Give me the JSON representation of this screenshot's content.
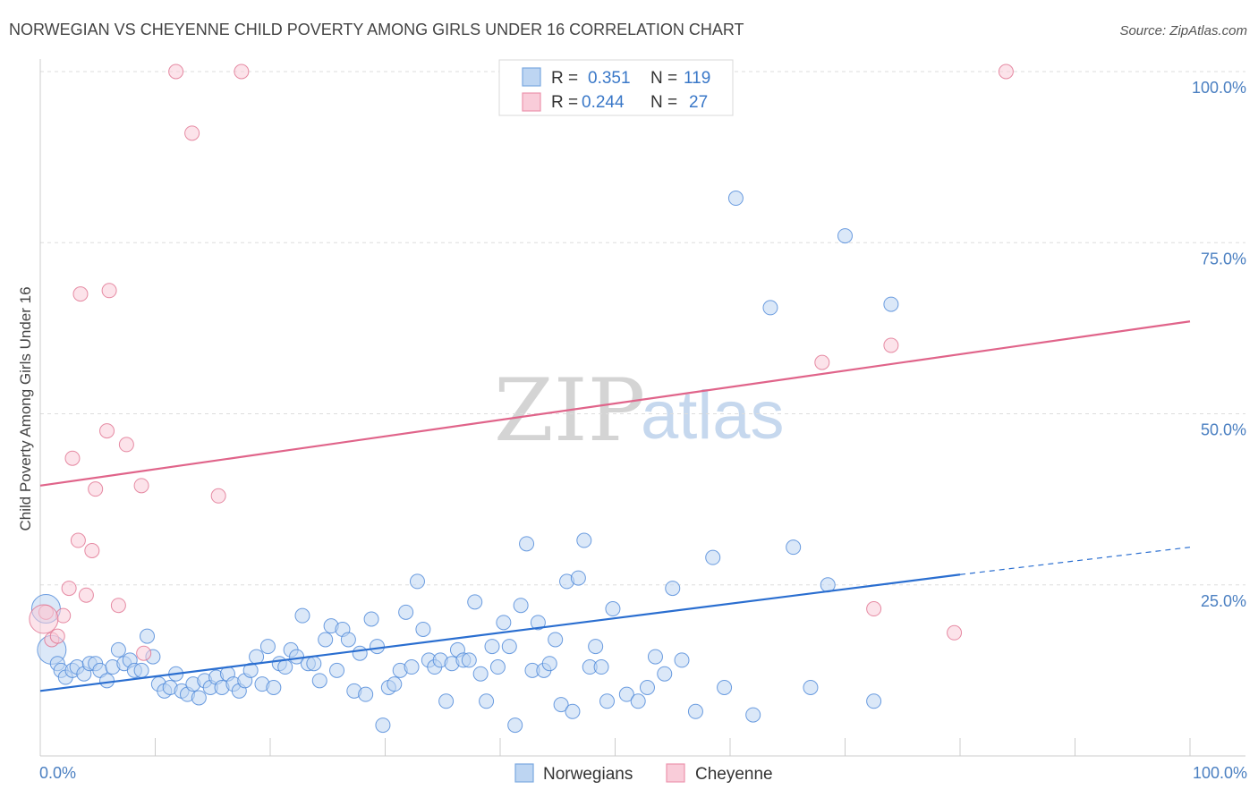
{
  "title": "NORWEGIAN VS CHEYENNE CHILD POVERTY AMONG GIRLS UNDER 16 CORRELATION CHART",
  "source": "Source: ZipAtlas.com",
  "watermark": {
    "zip": "ZIP",
    "atlas": "atlas"
  },
  "legend": {
    "rows": [
      {
        "r_label": "R =",
        "r_value": "0.351",
        "n_label": "N =",
        "n_value": "119",
        "color": "#9fc3ec"
      },
      {
        "r_label": "R =",
        "r_value": "0.244",
        "n_label": "N =",
        "n_value": "27",
        "color": "#f6b9ca"
      }
    ]
  },
  "bottom_legend": [
    {
      "label": "Norwegians",
      "color": "#9fc3ec"
    },
    {
      "label": "Cheyenne",
      "color": "#f6b9ca"
    }
  ],
  "chart_data": {
    "type": "scatter",
    "ylabel": "Child Poverty Among Girls Under 16",
    "xlabel": "",
    "xlim": [
      0,
      100
    ],
    "ylim": [
      0,
      100
    ],
    "x_tick_labels": {
      "left": "0.0%",
      "right": "100.0%"
    },
    "y_ticks": [
      {
        "value": 100,
        "label": "100.0%"
      },
      {
        "value": 75,
        "label": "75.0%"
      },
      {
        "value": 50,
        "label": "50.0%"
      },
      {
        "value": 25,
        "label": "25.0%"
      }
    ],
    "grid": true,
    "legend_position": "top-center",
    "series": [
      {
        "name": "Norwegians",
        "color": "#4a86d8",
        "fill": "#bdd5f2",
        "trend": {
          "x": [
            0,
            80
          ],
          "y": [
            9.5,
            26.5
          ],
          "dashed_to": [
            100,
            30.5
          ],
          "color": "#2a6ed0"
        },
        "points": [
          [
            0.5,
            21.5
          ],
          [
            1.0,
            15.5
          ],
          [
            1.5,
            13.5
          ],
          [
            1.8,
            12.5
          ],
          [
            2.2,
            11.5
          ],
          [
            2.8,
            12.5
          ],
          [
            3.2,
            13.0
          ],
          [
            3.8,
            12.0
          ],
          [
            4.3,
            13.5
          ],
          [
            4.8,
            13.5
          ],
          [
            5.2,
            12.5
          ],
          [
            5.8,
            11.0
          ],
          [
            6.3,
            13.0
          ],
          [
            6.8,
            15.5
          ],
          [
            7.3,
            13.5
          ],
          [
            7.8,
            14.0
          ],
          [
            8.2,
            12.5
          ],
          [
            8.8,
            12.5
          ],
          [
            9.3,
            17.5
          ],
          [
            9.8,
            14.5
          ],
          [
            10.3,
            10.5
          ],
          [
            10.8,
            9.5
          ],
          [
            11.3,
            10.0
          ],
          [
            11.8,
            12.0
          ],
          [
            12.3,
            9.5
          ],
          [
            12.8,
            9.0
          ],
          [
            13.3,
            10.5
          ],
          [
            13.8,
            8.5
          ],
          [
            14.3,
            11.0
          ],
          [
            14.8,
            10.0
          ],
          [
            15.3,
            11.5
          ],
          [
            15.8,
            10.0
          ],
          [
            16.3,
            12.0
          ],
          [
            16.8,
            10.5
          ],
          [
            17.3,
            9.5
          ],
          [
            17.8,
            11.0
          ],
          [
            18.3,
            12.5
          ],
          [
            18.8,
            14.5
          ],
          [
            19.3,
            10.5
          ],
          [
            19.8,
            16.0
          ],
          [
            20.3,
            10.0
          ],
          [
            20.8,
            13.5
          ],
          [
            21.3,
            13.0
          ],
          [
            21.8,
            15.5
          ],
          [
            22.3,
            14.5
          ],
          [
            22.8,
            20.5
          ],
          [
            23.3,
            13.5
          ],
          [
            23.8,
            13.5
          ],
          [
            24.3,
            11.0
          ],
          [
            24.8,
            17.0
          ],
          [
            25.3,
            19.0
          ],
          [
            25.8,
            12.5
          ],
          [
            26.3,
            18.5
          ],
          [
            26.8,
            17.0
          ],
          [
            27.3,
            9.5
          ],
          [
            27.8,
            15.0
          ],
          [
            28.3,
            9.0
          ],
          [
            28.8,
            20.0
          ],
          [
            29.3,
            16.0
          ],
          [
            29.8,
            4.5
          ],
          [
            30.3,
            10.0
          ],
          [
            30.8,
            10.5
          ],
          [
            31.3,
            12.5
          ],
          [
            31.8,
            21.0
          ],
          [
            32.3,
            13.0
          ],
          [
            32.8,
            25.5
          ],
          [
            33.3,
            18.5
          ],
          [
            33.8,
            14.0
          ],
          [
            34.3,
            13.0
          ],
          [
            34.8,
            14.0
          ],
          [
            35.3,
            8.0
          ],
          [
            35.8,
            13.5
          ],
          [
            36.3,
            15.5
          ],
          [
            36.8,
            14.0
          ],
          [
            37.3,
            14.0
          ],
          [
            37.8,
            22.5
          ],
          [
            38.3,
            12.0
          ],
          [
            38.8,
            8.0
          ],
          [
            39.3,
            16.0
          ],
          [
            39.8,
            13.0
          ],
          [
            40.3,
            19.5
          ],
          [
            40.8,
            16.0
          ],
          [
            41.3,
            4.5
          ],
          [
            41.8,
            22.0
          ],
          [
            42.3,
            31.0
          ],
          [
            42.8,
            12.5
          ],
          [
            43.3,
            19.5
          ],
          [
            43.8,
            12.5
          ],
          [
            44.3,
            13.5
          ],
          [
            44.8,
            17.0
          ],
          [
            45.3,
            7.5
          ],
          [
            45.8,
            25.5
          ],
          [
            46.3,
            6.5
          ],
          [
            46.8,
            26.0
          ],
          [
            47.3,
            31.5
          ],
          [
            47.8,
            13.0
          ],
          [
            48.3,
            16.0
          ],
          [
            48.8,
            13.0
          ],
          [
            49.3,
            8.0
          ],
          [
            49.8,
            21.5
          ],
          [
            51.0,
            9.0
          ],
          [
            52.0,
            8.0
          ],
          [
            52.8,
            10.0
          ],
          [
            53.5,
            14.5
          ],
          [
            54.3,
            12.0
          ],
          [
            55.0,
            24.5
          ],
          [
            55.8,
            14.0
          ],
          [
            57.0,
            6.5
          ],
          [
            58.5,
            29.0
          ],
          [
            59.5,
            10.0
          ],
          [
            60.5,
            81.5
          ],
          [
            62.0,
            6.0
          ],
          [
            63.5,
            65.5
          ],
          [
            65.5,
            30.5
          ],
          [
            67.0,
            10.0
          ],
          [
            68.5,
            25.0
          ],
          [
            70.0,
            76.0
          ],
          [
            72.5,
            8.0
          ],
          [
            74.0,
            66.0
          ]
        ]
      },
      {
        "name": "Cheyenne",
        "color": "#e0708f",
        "fill": "#f9ccd9",
        "trend": {
          "x": [
            0,
            100
          ],
          "y": [
            39.5,
            63.5
          ],
          "color": "#e0648a"
        },
        "points": [
          [
            0.5,
            21.0
          ],
          [
            1.0,
            17.0
          ],
          [
            1.5,
            17.5
          ],
          [
            2.0,
            20.5
          ],
          [
            2.5,
            24.5
          ],
          [
            2.8,
            43.5
          ],
          [
            3.3,
            31.5
          ],
          [
            3.5,
            67.5
          ],
          [
            4.0,
            23.5
          ],
          [
            4.5,
            30.0
          ],
          [
            4.8,
            39.0
          ],
          [
            5.8,
            47.5
          ],
          [
            6.0,
            68.0
          ],
          [
            6.8,
            22.0
          ],
          [
            7.5,
            45.5
          ],
          [
            8.8,
            39.5
          ],
          [
            9.0,
            15.0
          ],
          [
            11.8,
            100.0
          ],
          [
            13.2,
            91.0
          ],
          [
            15.5,
            38.0
          ],
          [
            17.5,
            100.0
          ],
          [
            68.0,
            57.5
          ],
          [
            72.5,
            21.5
          ],
          [
            74.0,
            60.0
          ],
          [
            79.5,
            18.0
          ],
          [
            84.0,
            100.0
          ],
          [
            0.3,
            20.0
          ]
        ]
      }
    ]
  }
}
